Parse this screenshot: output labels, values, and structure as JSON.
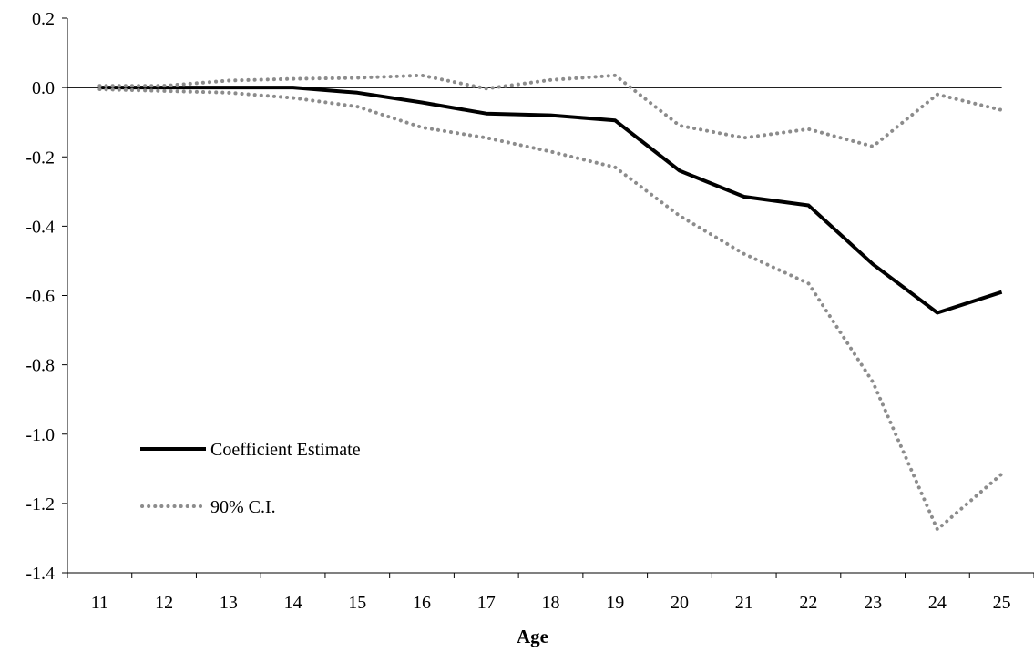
{
  "chart_data": {
    "type": "line",
    "x": [
      11,
      12,
      13,
      14,
      15,
      16,
      17,
      18,
      19,
      20,
      21,
      22,
      23,
      24,
      25
    ],
    "xlabel": "Age",
    "ylabel": "",
    "title": "",
    "ylim": [
      -1.4,
      0.2
    ],
    "yticks": [
      "0.2",
      "0.0",
      "-0.2",
      "-0.4",
      "-0.6",
      "-0.8",
      "-1.0",
      "-1.2",
      "-1.4"
    ],
    "ytick_values": [
      0.2,
      0.0,
      -0.2,
      -0.4,
      -0.6,
      -0.8,
      -1.0,
      -1.2,
      -1.4
    ],
    "xticks": [
      "11",
      "12",
      "13",
      "14",
      "15",
      "16",
      "17",
      "18",
      "19",
      "20",
      "21",
      "22",
      "23",
      "24",
      "25"
    ],
    "grid": false,
    "zero_line": true,
    "legend_position": "bottom-left",
    "series": [
      {
        "name": "Coefficient Estimate",
        "style": "solid",
        "color": "#000000",
        "values": [
          0.0,
          0.0,
          0.0,
          0.0,
          -0.015,
          -0.043,
          -0.075,
          -0.08,
          -0.095,
          -0.24,
          -0.315,
          -0.34,
          -0.51,
          -0.65,
          -0.59
        ]
      },
      {
        "name": "90% C.I.",
        "style": "dotted",
        "color": "#8c8c8c",
        "values": [
          0.005,
          0.005,
          0.02,
          0.025,
          0.028,
          0.035,
          -0.003,
          0.022,
          0.035,
          -0.11,
          -0.145,
          -0.12,
          -0.17,
          -0.02,
          -0.065
        ]
      },
      {
        "name": "",
        "style": "dotted",
        "color": "#8c8c8c",
        "values": [
          -0.005,
          -0.01,
          -0.015,
          -0.03,
          -0.055,
          -0.115,
          -0.145,
          -0.185,
          -0.23,
          -0.37,
          -0.48,
          -0.565,
          -0.85,
          -1.275,
          -1.115
        ]
      }
    ]
  }
}
